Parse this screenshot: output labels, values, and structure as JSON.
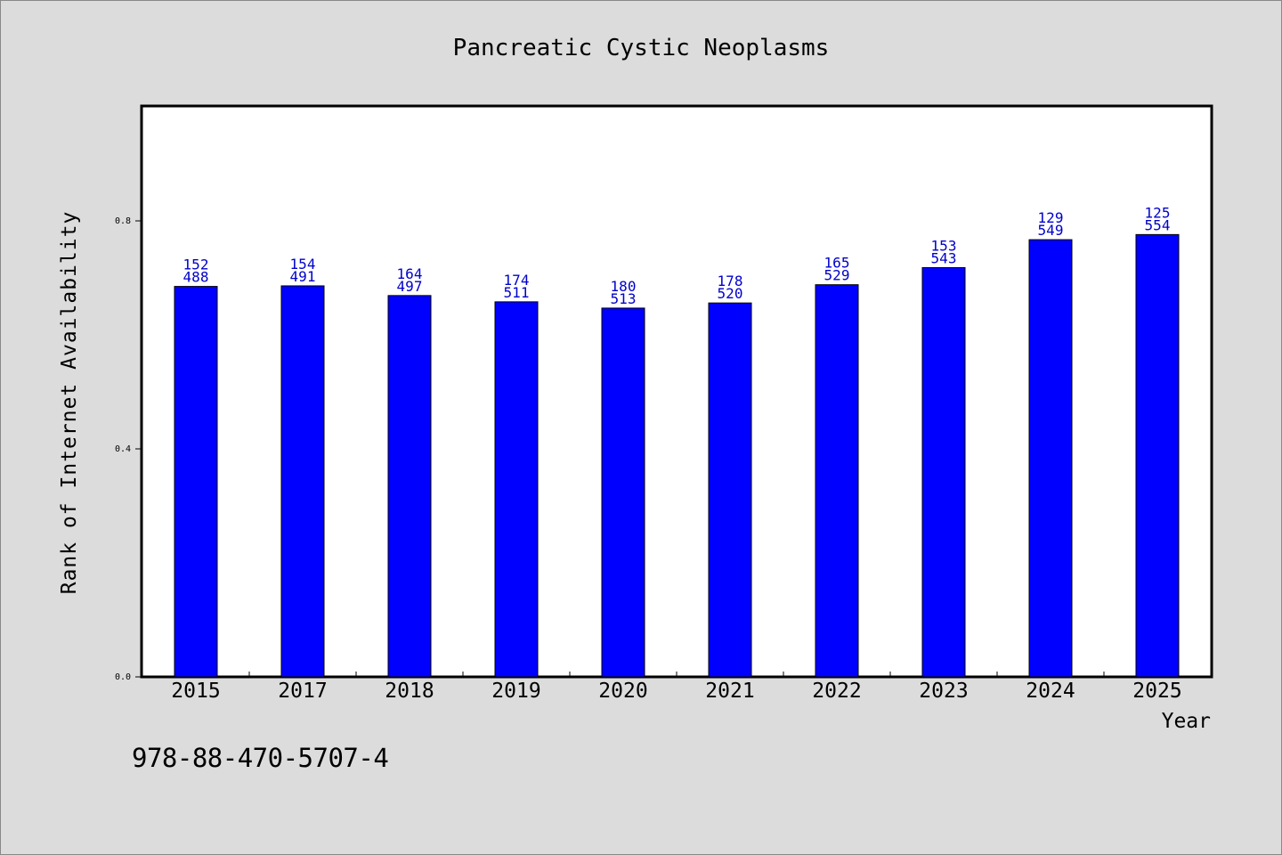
{
  "chart_data": {
    "type": "bar",
    "title": "Pancreatic Cystic Neoplasms",
    "xlabel": "Year",
    "ylabel": "Rank of Internet Availability",
    "categories": [
      "2015",
      "2017",
      "2018",
      "2019",
      "2020",
      "2021",
      "2022",
      "2023",
      "2024",
      "2025"
    ],
    "values": [
      0.685,
      0.686,
      0.669,
      0.658,
      0.647,
      0.656,
      0.688,
      0.718,
      0.767,
      0.776
    ],
    "bar_labels_top": [
      "152",
      "154",
      "164",
      "174",
      "180",
      "178",
      "165",
      "153",
      "129",
      "125"
    ],
    "bar_labels_bottom": [
      "488",
      "491",
      "497",
      "511",
      "513",
      "520",
      "529",
      "543",
      "549",
      "554"
    ],
    "ylim": [
      0,
      1.0
    ],
    "yticks": [
      0.0,
      0.4,
      0.8
    ],
    "ytick_labels": [
      "0.0",
      "0.4",
      "0.8"
    ],
    "grid": false,
    "colors": {
      "bar": "#0000ff",
      "label": "#0000cc",
      "background": "#dcdcdc",
      "plot_background": "#ffffff"
    }
  },
  "footer": {
    "code": "978-88-470-5707-4"
  }
}
